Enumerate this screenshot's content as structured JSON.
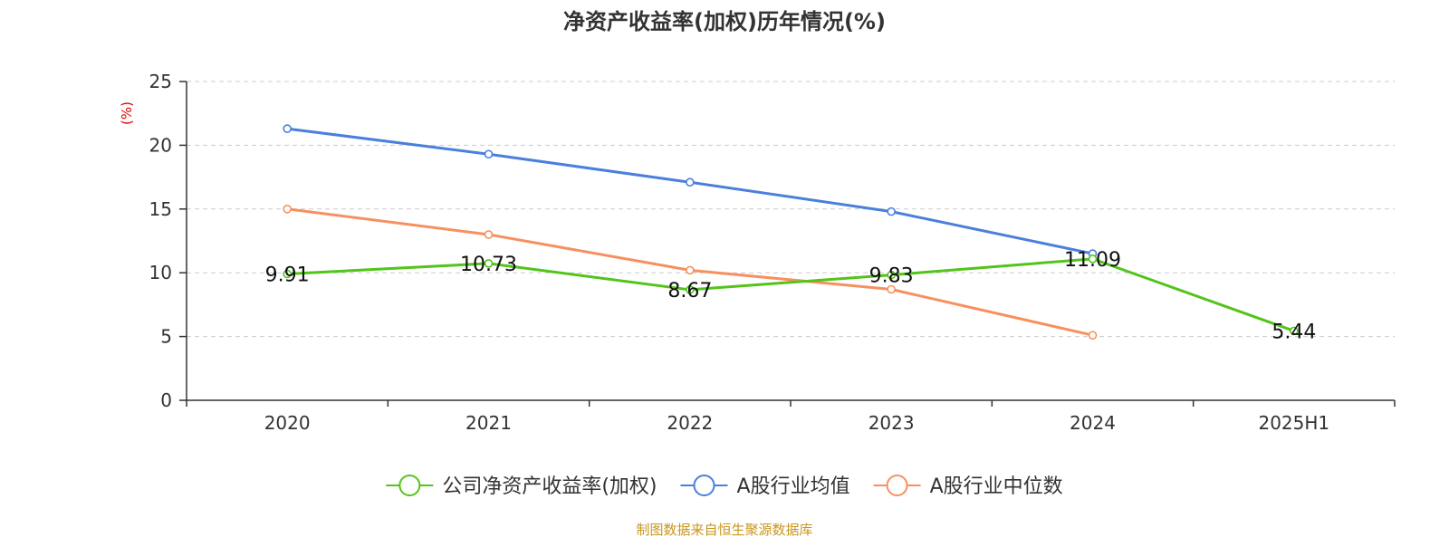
{
  "chart_data": {
    "type": "line",
    "title": "净资产收益率(加权)历年情况(%)",
    "ylabel": "(%)",
    "xlabel": "",
    "categories": [
      "2020",
      "2021",
      "2022",
      "2023",
      "2024",
      "2025H1"
    ],
    "ylim": [
      0,
      25
    ],
    "yticks": [
      0,
      5,
      10,
      15,
      20,
      25
    ],
    "grid": true,
    "legend_position": "bottom-center",
    "series": [
      {
        "name": "公司净资产收益率(加权)",
        "color": "#52c41a",
        "values": [
          9.91,
          10.73,
          8.67,
          9.83,
          11.09,
          5.44
        ],
        "labels": [
          "9.91",
          "10.73",
          "8.67",
          "9.83",
          "11.09",
          "5.44"
        ],
        "show_labels": true
      },
      {
        "name": "A股行业均值",
        "color": "#4a7fdc",
        "values": [
          21.3,
          19.3,
          17.1,
          14.8,
          11.5,
          null
        ],
        "show_labels": false
      },
      {
        "name": "A股行业中位数",
        "color": "#f79060",
        "values": [
          15.0,
          13.0,
          10.2,
          8.7,
          5.1,
          null
        ],
        "show_labels": false
      }
    ]
  },
  "footer": {
    "source": "制图数据来自恒生聚源数据库"
  },
  "colors": {
    "title": "#333333",
    "axis": "#333333",
    "grid": "#cccccc",
    "ylabel": "#e00000",
    "source": "#c8961e"
  }
}
